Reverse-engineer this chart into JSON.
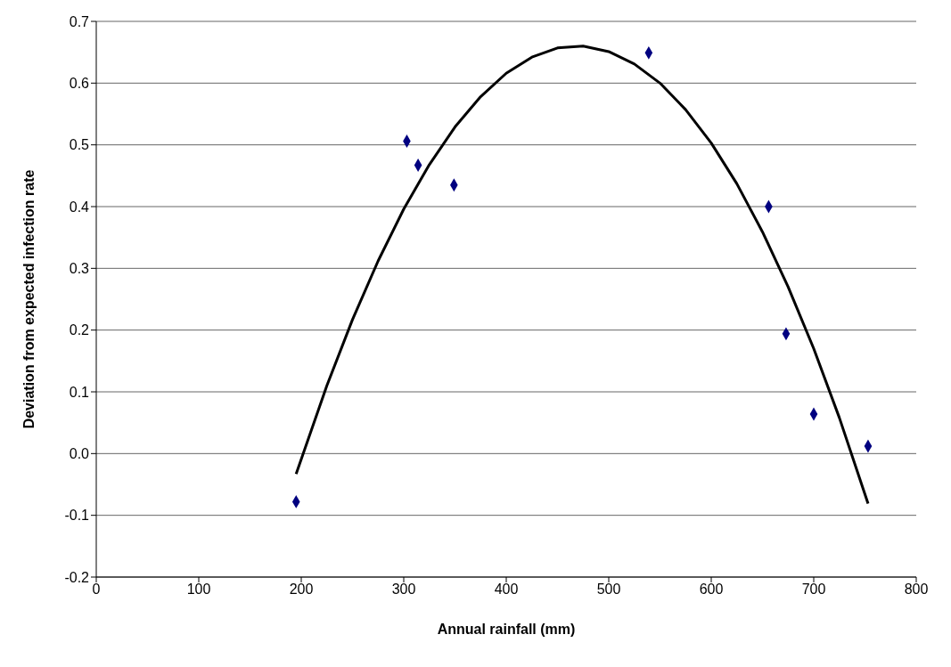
{
  "chart_data": {
    "type": "scatter",
    "xlabel": "Annual rainfall (mm)",
    "ylabel": "Deviation from expected infection rate",
    "xlim": [
      0,
      800
    ],
    "xticks": [
      0,
      100,
      200,
      300,
      400,
      500,
      600,
      700,
      800
    ],
    "ylim": [
      -0.2,
      0.7
    ],
    "yticks": [
      -0.2,
      -0.1,
      {
        "value": 0,
        "label": "0.0"
      },
      0.1,
      0.2,
      0.3,
      0.4,
      0.5,
      0.6,
      0.7
    ],
    "grid": "y",
    "series": [
      {
        "color": "#000080",
        "marker": "diamond",
        "x": [
          195,
          303,
          314,
          349,
          539,
          656,
          673,
          700,
          753
        ],
        "values": [
          -0.078,
          0.506,
          0.467,
          0.435,
          0.649,
          0.4,
          0.194,
          0.064,
          0.012
        ]
      },
      {
        "type": "line",
        "color": "#000000",
        "marker": "none",
        "line_style": "solid",
        "x": [
          195,
          225,
          250,
          275,
          300,
          325,
          350,
          375,
          400,
          425,
          450,
          475,
          500,
          525,
          550,
          575,
          600,
          625,
          650,
          675,
          700,
          725,
          753
        ],
        "values": [
          -0.033,
          0.11,
          0.217,
          0.312,
          0.396,
          0.468,
          0.529,
          0.578,
          0.616,
          0.642,
          0.657,
          0.66,
          0.651,
          0.631,
          0.6,
          0.557,
          0.503,
          0.437,
          0.359,
          0.27,
          0.17,
          0.058,
          -0.081
        ]
      }
    ]
  }
}
